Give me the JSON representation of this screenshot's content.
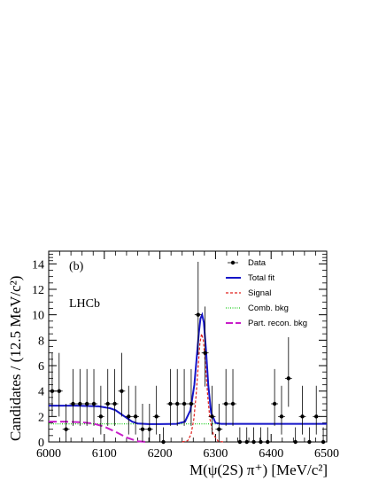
{
  "chart_data": {
    "type": "scatter",
    "panel_label": "(b)",
    "experiment_label": "LHCb",
    "xlabel": "M(ψ(2S) π⁺) [MeV/c²]",
    "ylabel": "Candidates / (12.5 MeV/c²)",
    "xlim": [
      6000,
      6500
    ],
    "ylim": [
      0,
      15
    ],
    "x_ticks": [
      6000,
      6100,
      6200,
      6300,
      6400,
      6500
    ],
    "y_ticks": [
      0,
      2,
      4,
      6,
      8,
      10,
      12,
      14
    ],
    "legend_position": "top-right",
    "legend": [
      {
        "label": "Data",
        "style": "marker",
        "color": "#000000"
      },
      {
        "label": "Total fit",
        "style": "solid",
        "color": "#1515c8"
      },
      {
        "label": "Signal",
        "style": "dashed",
        "color": "#e0201e"
      },
      {
        "label": "Comb. bkg",
        "style": "dotted",
        "color": "#1bcc1b"
      },
      {
        "label": "Part. recon. bkg",
        "style": "longdash",
        "color": "#c81ec8"
      }
    ],
    "data_points": {
      "bin_width": 12.5,
      "x": [
        6006.25,
        6018.75,
        6031.25,
        6043.75,
        6056.25,
        6068.75,
        6081.25,
        6093.75,
        6106.25,
        6118.75,
        6131.25,
        6143.75,
        6156.25,
        6168.75,
        6181.25,
        6193.75,
        6206.25,
        6218.75,
        6231.25,
        6243.75,
        6256.25,
        6268.75,
        6281.25,
        6293.75,
        6306.25,
        6318.75,
        6331.25,
        6343.75,
        6356.25,
        6368.75,
        6381.25,
        6393.75,
        6406.25,
        6418.75,
        6431.25,
        6443.75,
        6456.25,
        6468.75,
        6481.25,
        6493.75
      ],
      "y": [
        4,
        4,
        1,
        3,
        3,
        3,
        3,
        2,
        3,
        3,
        4,
        2,
        2,
        1,
        1,
        2,
        0,
        3,
        3,
        3,
        3,
        10,
        7,
        2,
        1,
        3,
        3,
        0,
        0,
        0,
        0,
        0,
        3,
        2,
        5,
        0,
        2,
        0,
        2,
        0
      ]
    },
    "total_fit": {
      "x": [
        6000,
        6050,
        6090,
        6110,
        6120,
        6130,
        6140,
        6150,
        6160,
        6180,
        6200,
        6230,
        6245,
        6255,
        6262,
        6266,
        6270,
        6273,
        6276,
        6279,
        6283,
        6287,
        6292,
        6300,
        6310,
        6350,
        6400,
        6450,
        6500
      ],
      "y": [
        2.85,
        2.85,
        2.8,
        2.65,
        2.5,
        2.2,
        1.9,
        1.6,
        1.45,
        1.4,
        1.4,
        1.42,
        1.6,
        2.5,
        4.5,
        6.5,
        8.6,
        9.7,
        10.0,
        9.4,
        7.2,
        4.5,
        2.3,
        1.5,
        1.42,
        1.42,
        1.42,
        1.42,
        1.42
      ]
    },
    "signal": {
      "x": [
        6240,
        6250,
        6256,
        6261,
        6265,
        6269,
        6272,
        6275,
        6278,
        6282,
        6286,
        6290,
        6296,
        6305,
        6315
      ],
      "y": [
        0.0,
        0.1,
        0.6,
        1.8,
        3.6,
        6.0,
        7.8,
        8.5,
        8.0,
        6.0,
        3.6,
        1.8,
        0.6,
        0.05,
        0.0
      ]
    },
    "comb_bkg": {
      "x": [
        6000,
        6500
      ],
      "y": [
        1.42,
        1.42
      ]
    },
    "part_recon_bkg": {
      "x": [
        6000,
        6030,
        6060,
        6080,
        6100,
        6120,
        6140,
        6160,
        6175
      ],
      "y": [
        1.6,
        1.6,
        1.55,
        1.45,
        1.2,
        0.8,
        0.35,
        0.05,
        0.0
      ]
    }
  }
}
